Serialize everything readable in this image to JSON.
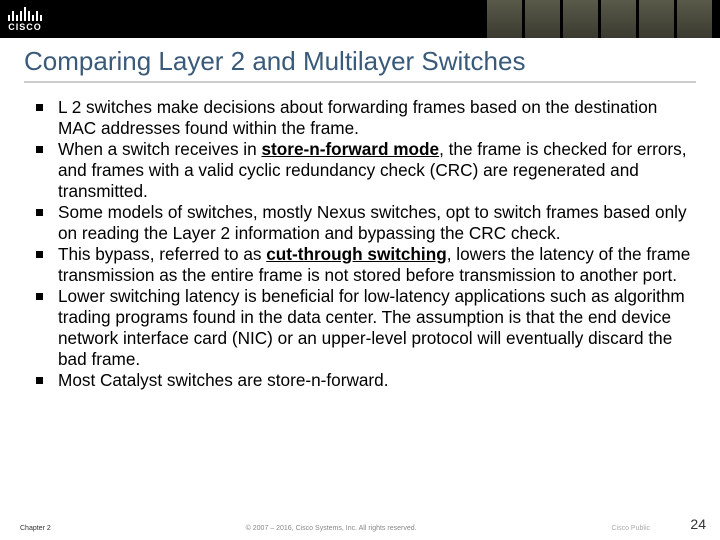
{
  "header": {
    "logo_text": "CISCO"
  },
  "title": "Comparing Layer 2 and Multilayer Switches",
  "bullets": [
    {
      "pre": "L 2 switches make decisions about forwarding frames based on the destination MAC addresses found within the frame."
    },
    {
      "pre": "When a switch receives in ",
      "bold": "store-n-forward mode",
      "post": ", the frame is checked for errors, and frames with a valid cyclic redundancy check (CRC) are regenerated and transmitted."
    },
    {
      "pre": "Some models of switches, mostly Nexus switches, opt to switch frames based only on reading the Layer 2 information and bypassing the CRC check."
    },
    {
      "pre": "This bypass, referred to as ",
      "bold": "cut-through switching",
      "post": ", lowers the latency of the frame transmission as the entire frame is not stored before transmission to another port."
    },
    {
      "pre": "Lower switching latency is beneficial for low-latency applications such as algorithm trading programs found in the data center. The assumption is that the end device network interface card (NIC) or an upper-level protocol will eventually discard the bad frame."
    },
    {
      "pre": "Most Catalyst switches are store-n-forward."
    }
  ],
  "footer": {
    "chapter": "Chapter 2",
    "copyright": "© 2007 – 2016, Cisco Systems, Inc. All rights reserved.",
    "public": "Cisco Public",
    "page": "24"
  },
  "colors": {
    "title_color": "#3a5a7a",
    "underline_color": "#cccccc",
    "bullet_color": "#000000",
    "background": "#ffffff"
  }
}
